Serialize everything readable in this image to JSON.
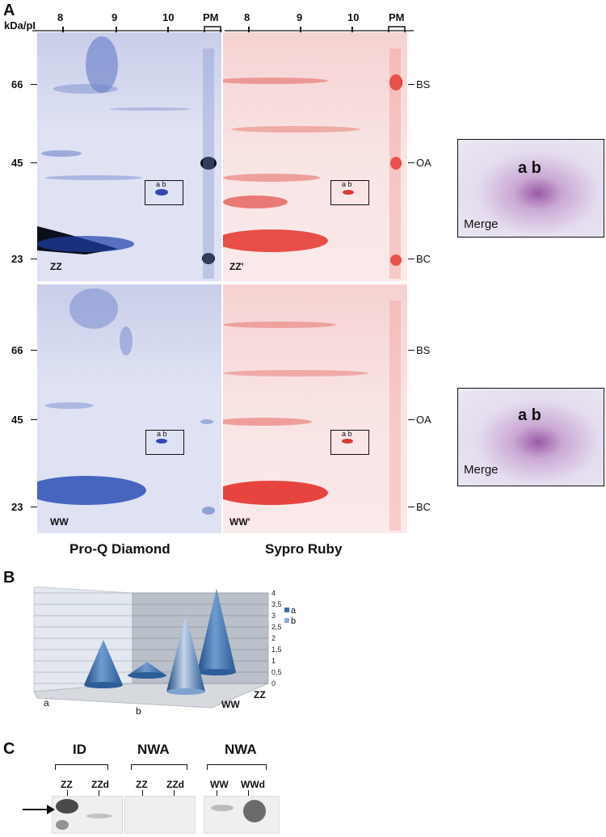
{
  "panels": {
    "A": "A",
    "B": "B",
    "C": "C"
  },
  "panel_a": {
    "axis_label": "kDa/pI",
    "pi_ticks": [
      "8",
      "9",
      "10",
      "PM"
    ],
    "mw_ticks": [
      "66",
      "45",
      "23"
    ],
    "markers": [
      "BS",
      "OA",
      "BC"
    ],
    "gel_labels": {
      "zz": "ZZ",
      "zz_prime": "ZZ'",
      "ww": "WW",
      "ww_prime": "WW'"
    },
    "spot_label": "a b",
    "captions": {
      "left": "Pro-Q Diamond",
      "right": "Sypro Ruby"
    },
    "merge": {
      "ab": "a b",
      "label": "Merge"
    },
    "colors": {
      "proq": "#3a55b5",
      "sypro": "#e0403a"
    }
  },
  "chart_data": {
    "type": "bar",
    "style": "3d-cone",
    "categories": [
      "a",
      "b"
    ],
    "depth_categories": [
      "ZZ",
      "WW"
    ],
    "series": [
      {
        "name": "a",
        "values": [
          2.0,
          3.7
        ]
      },
      {
        "name": "b",
        "values": [
          0.6,
          3.4
        ]
      }
    ],
    "ylim": [
      0,
      4
    ],
    "yticks": [
      "0",
      "0,5",
      "1",
      "1,5",
      "2",
      "2,5",
      "3",
      "3,5",
      "4"
    ],
    "legend": [
      "a",
      "b"
    ],
    "grid": true
  },
  "panel_c": {
    "groups": [
      "ID",
      "NWA",
      "NWA"
    ],
    "lanes": [
      [
        "ZZ",
        "ZZd"
      ],
      [
        "ZZ",
        "ZZd"
      ],
      [
        "WW",
        "WWd"
      ]
    ]
  }
}
